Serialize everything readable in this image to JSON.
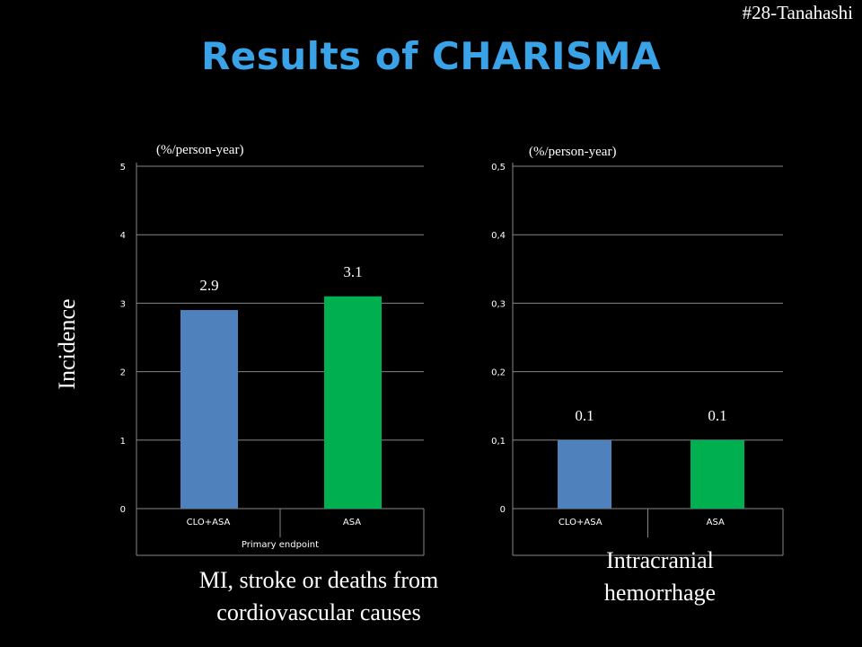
{
  "slide": {
    "tag": "#28-Tanahashi",
    "title": "Results of CHARISMA",
    "ylabel": "Incidence",
    "unit_left": "(%/person-year)",
    "unit_right": "(%/person-year)",
    "caption_left": [
      "MI, stroke or deaths from",
      "cordiovascular causes"
    ],
    "caption_right": [
      "Intracranial",
      "hemorrhage"
    ]
  },
  "colors": {
    "title": "#3aa3e8",
    "clo_asa": "#4f81bd",
    "asa": "#00b050"
  },
  "chart_data": [
    {
      "type": "bar",
      "categories": [
        "CLO+ASA",
        "ASA"
      ],
      "values": [
        2.9,
        3.1
      ],
      "data_labels": [
        "2.9",
        "3.1"
      ],
      "xlabel": "Primary endpoint",
      "ylabel": "(%/person-year)",
      "ylim": [
        0,
        5
      ],
      "yticks": [
        0,
        1,
        2,
        3,
        4,
        5
      ],
      "ytick_labels": [
        "0",
        "1",
        "2",
        "3",
        "4",
        "5"
      ],
      "grid": true
    },
    {
      "type": "bar",
      "categories": [
        "CLO+ASA",
        "ASA"
      ],
      "values": [
        0.1,
        0.1
      ],
      "data_labels": [
        "0.1",
        "0.1"
      ],
      "xlabel": "",
      "ylabel": "(%/person-year)",
      "ylim": [
        0,
        0.5
      ],
      "yticks": [
        0,
        0.1,
        0.2,
        0.3,
        0.4,
        0.5
      ],
      "ytick_labels": [
        "0",
        "0,1",
        "0,2",
        "0,3",
        "0,4",
        "0,5"
      ],
      "grid": true
    }
  ]
}
